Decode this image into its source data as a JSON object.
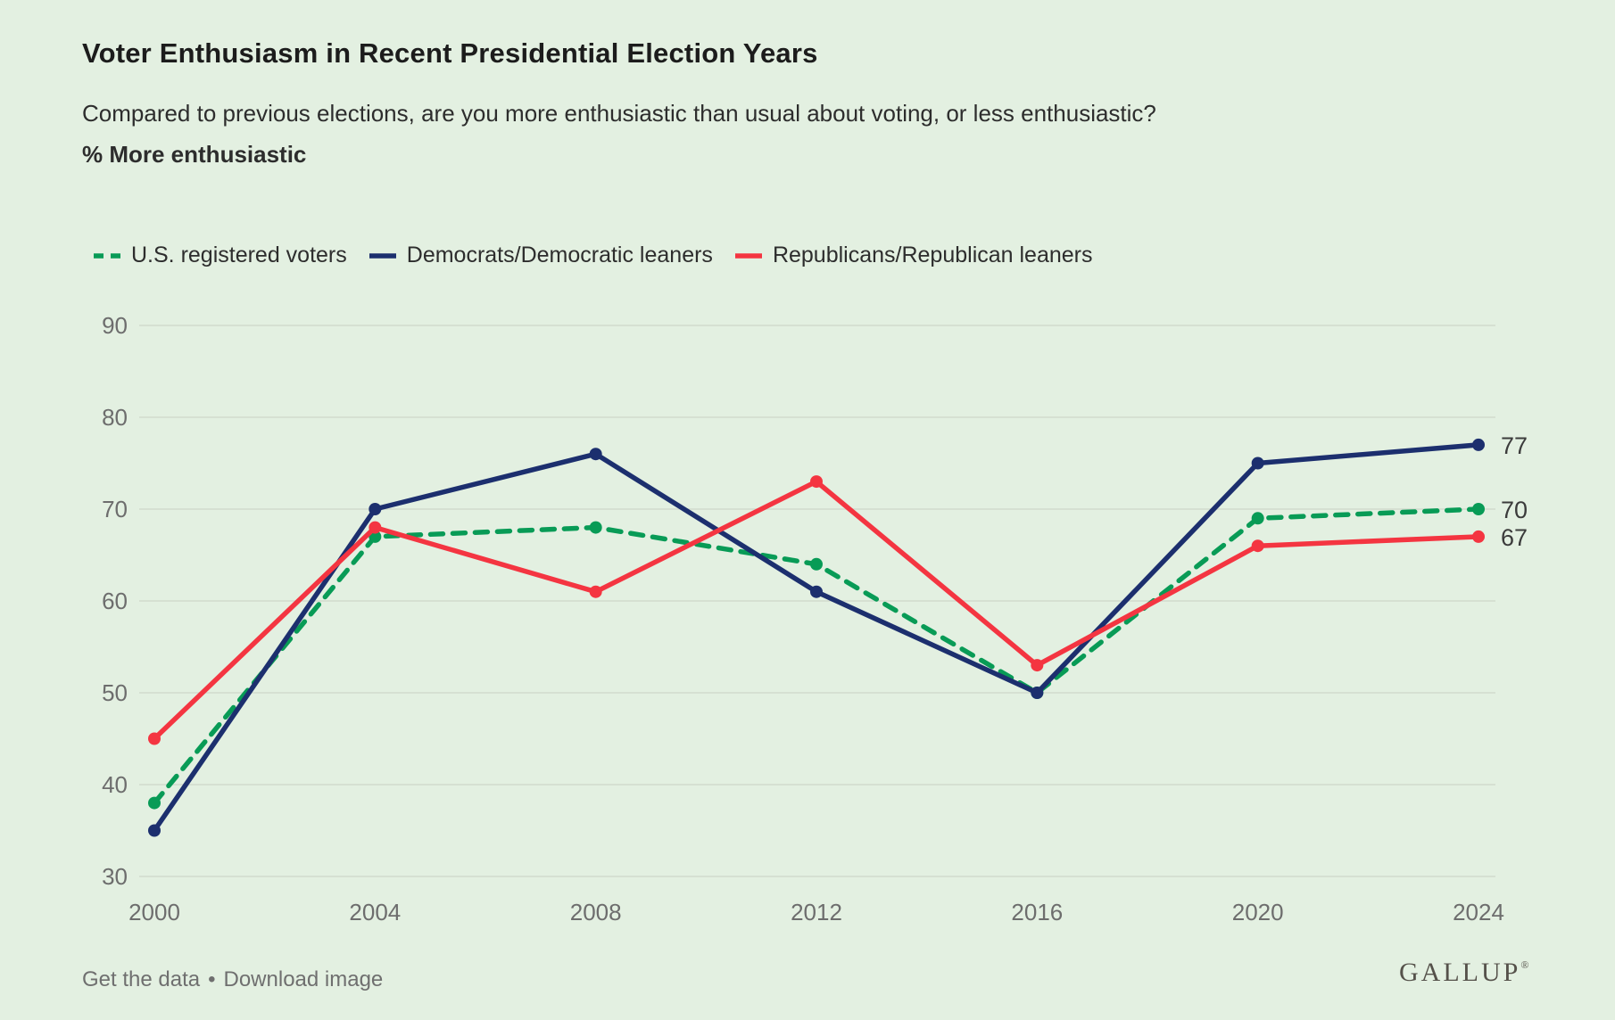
{
  "page": {
    "title": "Voter Enthusiasm in Recent Presidential Election Years",
    "subtitle": "Compared to previous elections, are you more enthusiastic than usual about voting, or less enthusiastic?",
    "axis_caption": "% More enthusiastic"
  },
  "footer": {
    "get_data_label": "Get the data",
    "separator": "•",
    "download_label": "Download image",
    "logo_text": "GALLUP",
    "logo_registered": "®"
  },
  "colors": {
    "background": "#e3f0e1",
    "gridline": "#d2dbce",
    "axis_tick_label": "#6d6d6d",
    "end_value_label": "#3b3b3b",
    "registered_voters_green": "#089b56",
    "democrats_navy": "#1c2f6e",
    "republicans_red": "#f43541"
  },
  "chart_data": {
    "type": "line",
    "categories": [
      "2000",
      "2004",
      "2008",
      "2012",
      "2016",
      "2020",
      "2024"
    ],
    "series": [
      {
        "name": "U.S. registered voters",
        "slug": "us-registered-voters",
        "color": "#089b56",
        "dashed": true,
        "values": [
          38,
          67,
          68,
          64,
          50,
          69,
          70
        ],
        "end_label": "70"
      },
      {
        "name": "Democrats/Democratic leaners",
        "slug": "democrats-democratic-leaners",
        "color": "#1c2f6e",
        "dashed": false,
        "values": [
          35,
          70,
          76,
          61,
          50,
          75,
          77
        ],
        "end_label": "77"
      },
      {
        "name": "Republicans/Republican leaners",
        "slug": "republicans-republican-leaners",
        "color": "#f43541",
        "dashed": false,
        "values": [
          45,
          68,
          61,
          73,
          53,
          66,
          67
        ],
        "end_label": "67"
      }
    ],
    "title": "Voter Enthusiasm in Recent Presidential Election Years",
    "xlabel": "",
    "ylabel": "% More enthusiastic",
    "ylim": [
      30,
      90
    ],
    "yticks": [
      30,
      40,
      50,
      60,
      70,
      80,
      90
    ],
    "grid": true,
    "legend_position": "top"
  }
}
